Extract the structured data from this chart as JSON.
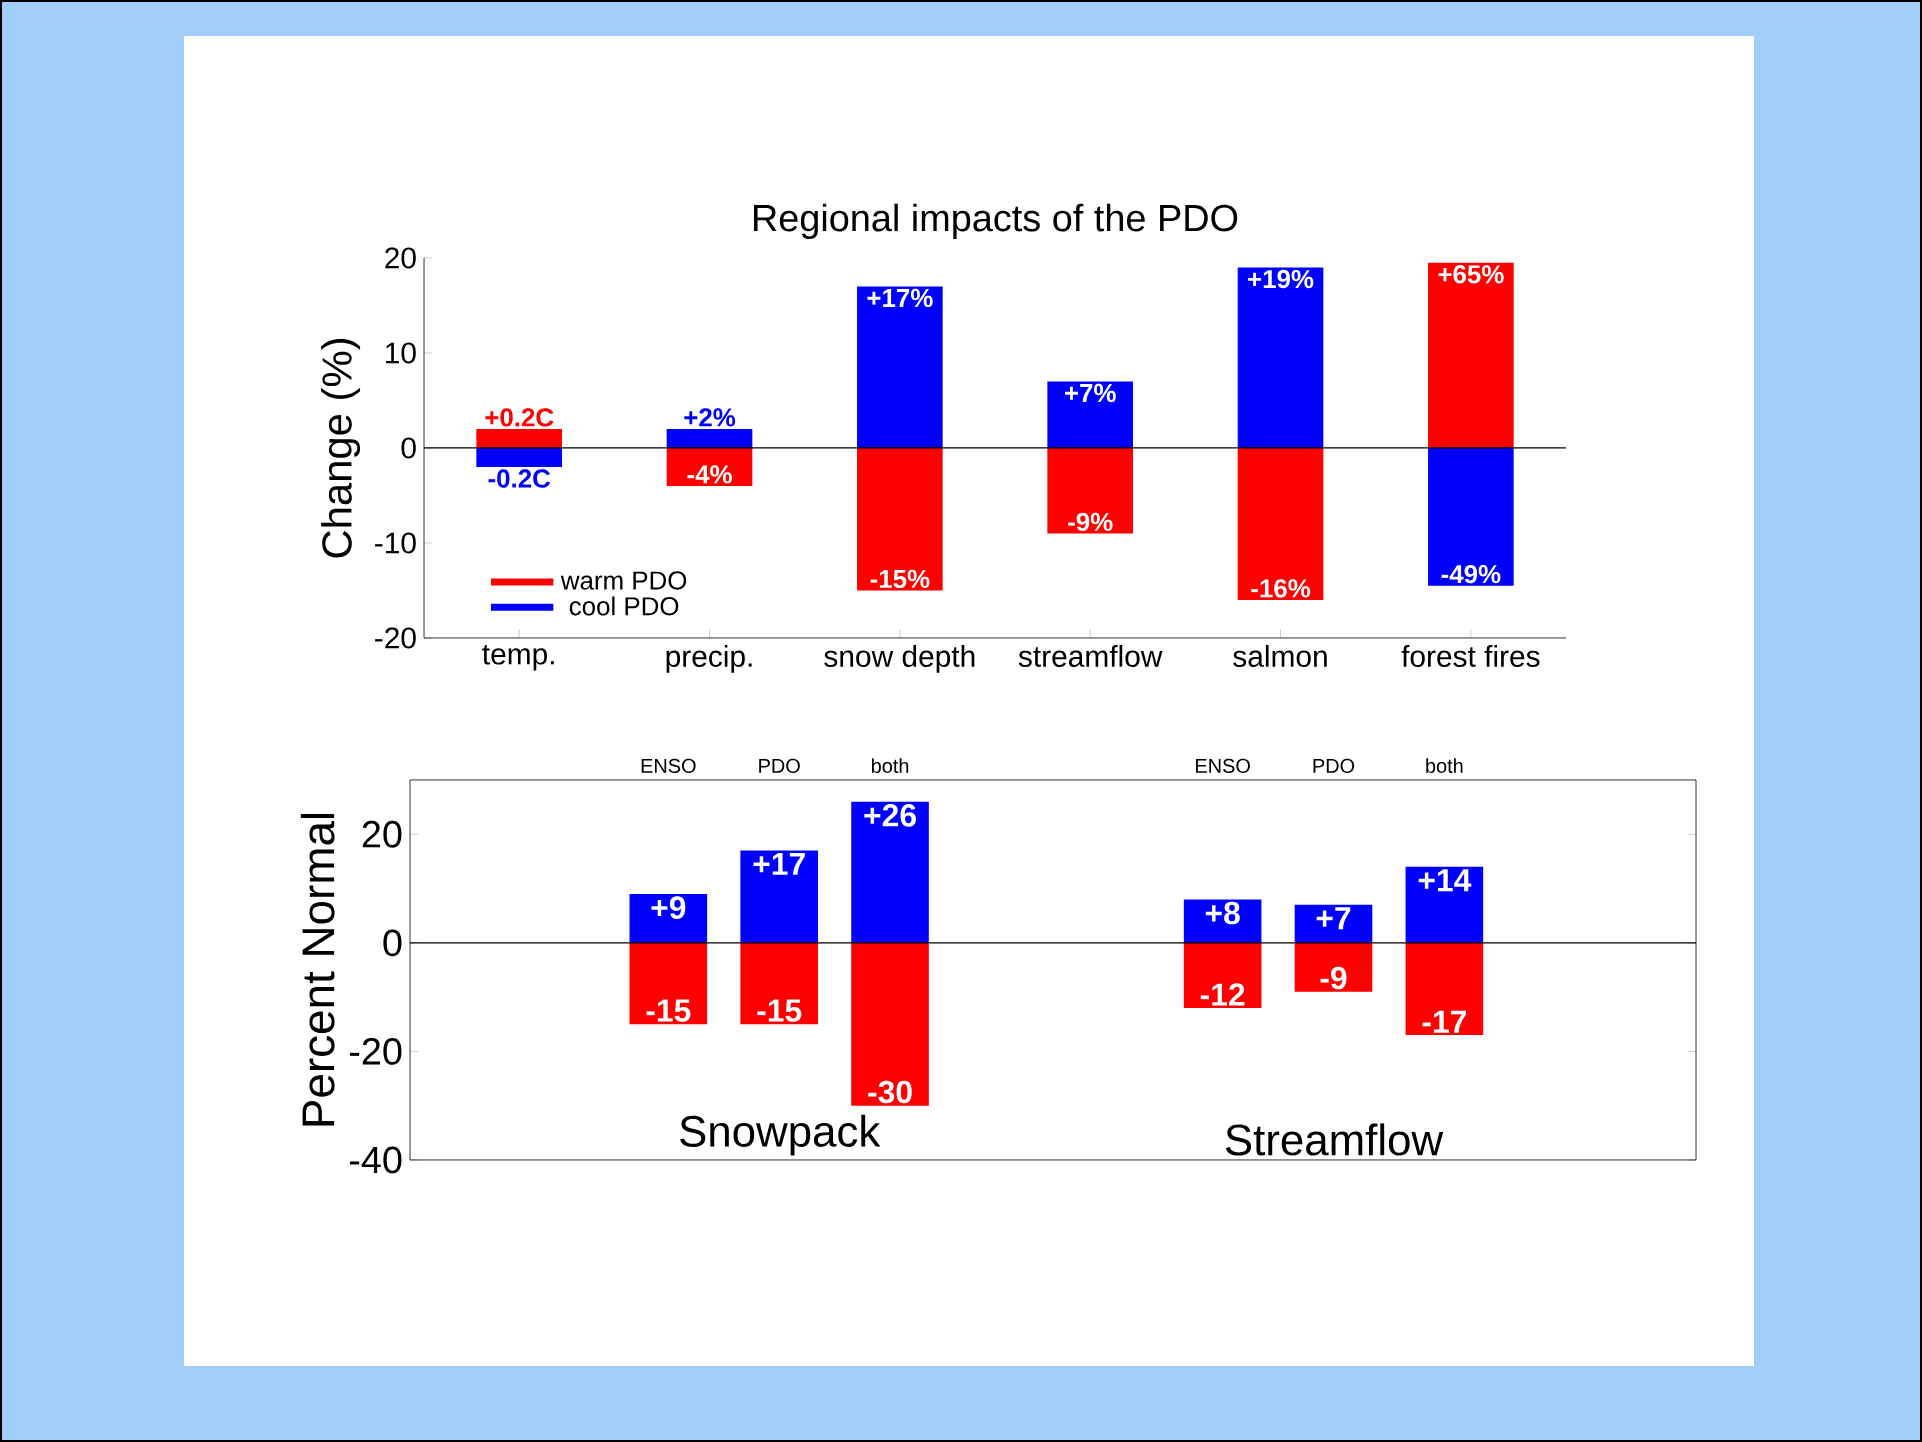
{
  "chart_data": [
    {
      "type": "bar",
      "stacked": true,
      "title": "Regional impacts of the PDO",
      "ylabel": "Change (%)",
      "categories": [
        "temp.",
        "precip.",
        "snow depth",
        "streamflow",
        "salmon",
        "forest fires"
      ],
      "series": [
        {
          "name": "warm PDO",
          "color": "#ff0000",
          "values": [
            2,
            -4,
            -15,
            -9,
            -16,
            19.5
          ],
          "value_labels": [
            null,
            "-4%",
            "-15%",
            "-9%",
            "-16%",
            null
          ]
        },
        {
          "name": "cool PDO",
          "color": "#0000ff",
          "values": [
            -2,
            2,
            17,
            7,
            19,
            -14.5
          ],
          "value_labels": [
            null,
            "+2%",
            "+17%",
            "+7%",
            "+19%",
            null
          ]
        }
      ],
      "annotations": [
        {
          "text": "+0.2C",
          "x": "temp.",
          "y": 2
        },
        {
          "text": "-0.2C",
          "x": "temp.",
          "y": -2
        },
        {
          "text": "+65%",
          "x": "forest fires",
          "y": 19.5
        },
        {
          "text": "-49%",
          "x": "forest fires",
          "y": -14.5
        }
      ],
      "ylim": [
        -20,
        20
      ],
      "yticks": [
        -20,
        -10,
        0,
        10,
        20
      ],
      "legend": "bottom left",
      "ref_lines": [
        {
          "axis": "y",
          "value": 0
        }
      ]
    },
    {
      "type": "bar",
      "stacked": true,
      "ylabel": "Percent Normal",
      "categories": [
        null,
        "ENSO",
        "PDO",
        "both",
        null,
        null,
        "ENSO",
        "PDO",
        "both"
      ],
      "series": [
        {
          "color": "#0000ff",
          "values": [
            null,
            9,
            17,
            26,
            null,
            null,
            8,
            7,
            14
          ],
          "value_labels": [
            null,
            "+9",
            "+17",
            "+26",
            null,
            null,
            "+8",
            "+7",
            "+14"
          ]
        },
        {
          "color": "#ff0000",
          "values": [
            null,
            -15,
            -15,
            -30,
            null,
            null,
            -12,
            -9,
            -17
          ],
          "value_labels": [
            null,
            "-15",
            "-15",
            "-30",
            null,
            null,
            "-12",
            "-9",
            "-17"
          ]
        }
      ],
      "ylim": [
        -40,
        30
      ],
      "yticks": [
        -40,
        -20,
        0,
        20
      ],
      "annotations": [
        "Snowpack",
        "Streamflow"
      ],
      "ref_lines": [
        {
          "axis": "y",
          "value": 0
        }
      ]
    }
  ]
}
